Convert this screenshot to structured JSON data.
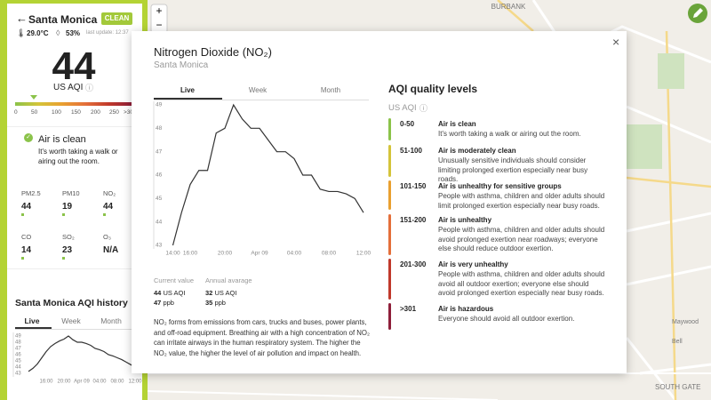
{
  "map": {
    "labels": [
      "BURBANK",
      "Maywood",
      "Bell",
      "SOUTH GATE"
    ],
    "zoom_in": "+",
    "zoom_out": "−"
  },
  "sidebar": {
    "city": "Santa Monica",
    "badge": "CLEAN",
    "temperature": "29.0°C",
    "humidity": "53%",
    "last_update": "last update: 12:37",
    "aqi": "44",
    "aqi_unit": "US AQI",
    "scale": [
      "0",
      "50",
      "100",
      "150",
      "200",
      "250",
      ">300"
    ],
    "status": {
      "title": "Air is clean",
      "text": "It's worth taking a walk or airing out the room."
    },
    "pollutants": [
      {
        "name": "PM2.5",
        "value": "44"
      },
      {
        "name": "PM10",
        "value": "19"
      },
      {
        "name": "NO₂",
        "value": "44"
      },
      {
        "name": "CO",
        "value": "14"
      },
      {
        "name": "SO₂",
        "value": "23"
      },
      {
        "name": "O₃",
        "value": "N/A"
      }
    ],
    "history": {
      "title": "Santa Monica AQI history",
      "tabs": [
        "Live",
        "Week",
        "Month"
      ],
      "chart": {
        "type": "line",
        "color": "#333333",
        "categories": [
          null,
          null,
          null,
          null,
          "16:00",
          null,
          null,
          null,
          "20:00",
          null,
          null,
          null,
          "Apr 09",
          null,
          null,
          null,
          "04:00",
          null,
          null,
          null,
          "08:00",
          null,
          null,
          null,
          "12:00"
        ],
        "values": [
          43.3,
          43.8,
          44.5,
          45.5,
          46.5,
          47.3,
          47.8,
          48.2,
          48.5,
          49,
          48.4,
          48,
          48,
          47.8,
          47.5,
          47,
          46.8,
          46.5,
          46,
          45.8,
          45.5,
          45.2,
          44.8,
          44.4,
          44
        ],
        "ylim": [
          43,
          49
        ],
        "yticks": [
          43,
          44,
          45,
          46,
          47,
          48,
          49
        ]
      }
    }
  },
  "modal": {
    "title": "Nitrogen Dioxide (NO₂)",
    "subtitle": "Santa Monica",
    "close": "×",
    "tabs": [
      "Live",
      "Week",
      "Month"
    ],
    "chart": {
      "type": "line",
      "color": "#333333",
      "categories": [
        "14:00",
        null,
        "16:00",
        null,
        null,
        null,
        "20:00",
        null,
        null,
        null,
        "Apr 09",
        null,
        null,
        null,
        "04:00",
        null,
        null,
        null,
        "08:00",
        null,
        null,
        null,
        "12:00"
      ],
      "values": [
        43.0,
        44.4,
        45.6,
        46.2,
        46.2,
        47.8,
        48.0,
        49.0,
        48.4,
        48.0,
        48.0,
        47.5,
        47.0,
        47.0,
        46.7,
        46.0,
        46.0,
        45.4,
        45.3,
        45.3,
        45.2,
        45.0,
        44.4
      ],
      "ylim": [
        43,
        49
      ],
      "yticks": [
        43,
        44,
        45,
        46,
        47,
        48,
        49
      ]
    },
    "current": {
      "label": "Current value",
      "aqi": "44",
      "aqi_unit": "US AQI",
      "ppb": "47",
      "ppb_unit": "ppb"
    },
    "annual": {
      "label": "Annual avarage",
      "aqi": "32",
      "aqi_unit": "US AQI",
      "ppb": "35",
      "ppb_unit": "ppb"
    },
    "description": "NO₂ forms from emissions from cars, trucks and buses, power plants, and off-road equipment. Breathing air with a high concentration of NO₂ can irritate airways in the human respiratory system. The higher the NO₂ value, the higher the level of air pollution and impact on health.",
    "levels_title": "AQI quality levels",
    "levels_unit": "US AQI",
    "levels": [
      {
        "range": "0-50",
        "title": "Air is clean",
        "text": "It's worth taking a walk or airing out the room."
      },
      {
        "range": "51-100",
        "title": "Air is moderately clean",
        "text": "Unusually sensitive individuals should consider limiting prolonged exertion especially near busy roads."
      },
      {
        "range": "101-150",
        "title": "Air is unhealthy for sensitive groups",
        "text": "People with asthma, children and older adults should limit prolonged exertion especially near busy roads."
      },
      {
        "range": "151-200",
        "title": "Air is unhealthy",
        "text": "People with asthma, children and older adults should avoid prolonged exertion near roadways; everyone else should reduce outdoor exertion."
      },
      {
        "range": "201-300",
        "title": "Air is very unhealthy",
        "text": "People with asthma, children and older adults should avoid all outdoor exertion; everyone else should avoid prolonged exertion especially near busy roads."
      },
      {
        "range": ">301",
        "title": "Air is hazardous",
        "text": "Everyone should avoid all outdoor exertion."
      }
    ]
  }
}
